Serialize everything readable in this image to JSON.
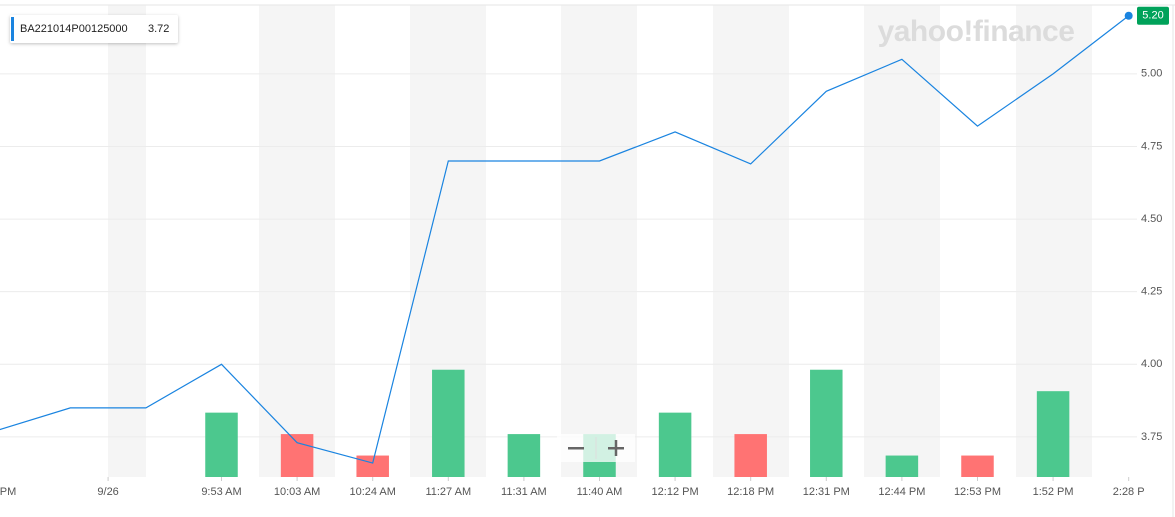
{
  "chart_data": {
    "type": "line",
    "watermark": "yahoo!finance",
    "legend_value": 3.72,
    "x": [
      0,
      1,
      2,
      3,
      4,
      5,
      6,
      7,
      8,
      9,
      10,
      11,
      12,
      13,
      14,
      15
    ],
    "series": [
      {
        "name": "BA221014P00125000",
        "color": "#1a84e0",
        "values": [
          3.77,
          3.85,
          3.85,
          4.0,
          3.73,
          3.66,
          4.7,
          4.7,
          4.7,
          4.8,
          4.69,
          4.94,
          5.05,
          4.82,
          5.0,
          5.2
        ],
        "value_labels": [
          null,
          null,
          null,
          null,
          null,
          null,
          null,
          null,
          null,
          null,
          null,
          null,
          null,
          null,
          null,
          "5.20"
        ],
        "label_color": "#00a25a"
      }
    ],
    "volume": {
      "x": [
        3,
        4,
        5,
        6,
        7,
        8,
        9,
        10,
        11,
        12,
        13,
        14
      ],
      "values": [
        3,
        2,
        1,
        5,
        2,
        2,
        3,
        2,
        5,
        1,
        1,
        4
      ],
      "colors": [
        "#4cc88e",
        "#ff7373",
        "#ff7373",
        "#4cc88e",
        "#4cc88e",
        "#4cc88e",
        "#4cc88e",
        "#ff7373",
        "#4cc88e",
        "#4cc88e",
        "#ff7373",
        "#4cc88e"
      ]
    },
    "xlim": [
      0.07,
      15.11
    ],
    "xticks": [
      {
        "value": 0,
        "label": "PM"
      },
      {
        "value": 1.5,
        "label": "9/26"
      },
      {
        "value": 3,
        "label": "9:53 AM"
      },
      {
        "value": 4,
        "label": "10:03 AM"
      },
      {
        "value": 5,
        "label": "10:24 AM"
      },
      {
        "value": 6,
        "label": "11:27 AM"
      },
      {
        "value": 7,
        "label": "11:31 AM"
      },
      {
        "value": 8,
        "label": "11:40 AM"
      },
      {
        "value": 9,
        "label": "12:12 PM"
      },
      {
        "value": 10,
        "label": "12:18 PM"
      },
      {
        "value": 11,
        "label": "12:31 PM"
      },
      {
        "value": 12,
        "label": "12:44 PM"
      },
      {
        "value": 13,
        "label": "12:53 PM"
      },
      {
        "value": 14,
        "label": "1:52 PM"
      },
      {
        "value": 15,
        "label": "2:28 P"
      }
    ],
    "ylim": [
      3.612,
      5.237
    ],
    "yticks": [
      {
        "value": 3.75,
        "label": "3.75"
      },
      {
        "value": 4,
        "label": "4.00"
      },
      {
        "value": 4.25,
        "label": "4.25"
      },
      {
        "value": 4.5,
        "label": "4.50"
      },
      {
        "value": 4.75,
        "label": "4.75"
      },
      {
        "value": 5,
        "label": "5.00"
      }
    ],
    "y2lim": [
      0,
      22
    ],
    "grid": true
  }
}
